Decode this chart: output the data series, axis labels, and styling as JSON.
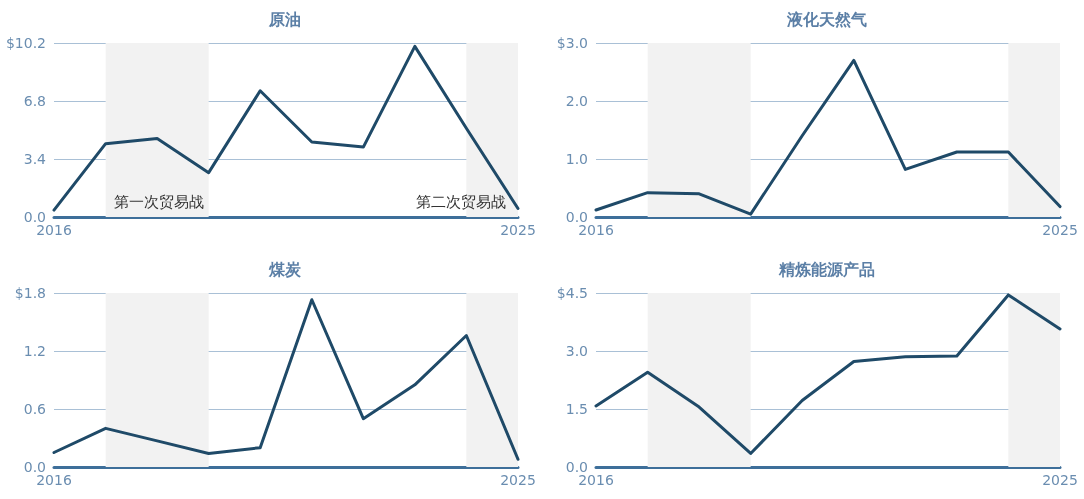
{
  "chart_data": [
    {
      "type": "line",
      "title": "原油",
      "x": [
        "2016",
        "2017",
        "2018",
        "2019",
        "2020",
        "2021",
        "2022",
        "2023",
        "2024",
        "2025"
      ],
      "xlim": [
        "2016",
        "2025"
      ],
      "xticks": [
        "2016",
        "2025"
      ],
      "ylim": [
        0,
        10.2
      ],
      "yticks": [
        {
          "value": 0,
          "label": "0.0"
        },
        3.4,
        6.8,
        {
          "value": 10.2,
          "label": "$10.2"
        }
      ],
      "grid": "y",
      "marker": "none",
      "line_style": "solid",
      "series": [
        {
          "color": "#1f4a68",
          "values": [
            0.4,
            4.3,
            4.6,
            2.6,
            7.4,
            4.4,
            4.1,
            10.0,
            5.2,
            0.5
          ]
        }
      ],
      "bands": [
        {
          "axis": "x",
          "from": "2017",
          "to": "2019",
          "label": "第一次贸易战",
          "color": "#f2f2f2"
        },
        {
          "axis": "x",
          "from": "2024",
          "to": "2025",
          "label": "第二次贸易战",
          "color": "#f2f2f2"
        }
      ]
    },
    {
      "type": "line",
      "title": "液化天然气",
      "x": [
        "2016",
        "2017",
        "2018",
        "2019",
        "2020",
        "2021",
        "2022",
        "2023",
        "2024",
        "2025"
      ],
      "xlim": [
        "2016",
        "2025"
      ],
      "xticks": [
        "2016",
        "2025"
      ],
      "ylim": [
        0,
        3
      ],
      "yticks": [
        {
          "value": 0,
          "label": "0.0"
        },
        {
          "value": 1,
          "label": "1.0"
        },
        {
          "value": 2,
          "label": "2.0"
        },
        {
          "value": 3,
          "label": "$3.0"
        }
      ],
      "grid": "y",
      "marker": "none",
      "line_style": "solid",
      "series": [
        {
          "color": "#1f4a68",
          "values": [
            0.12,
            0.42,
            0.4,
            0.05,
            1.4,
            2.7,
            0.82,
            1.12,
            1.12,
            0.18
          ]
        }
      ],
      "bands": [
        {
          "axis": "x",
          "from": "2017",
          "to": "2019",
          "color": "#f2f2f2"
        },
        {
          "axis": "x",
          "from": "2024",
          "to": "2025",
          "color": "#f2f2f2"
        }
      ]
    },
    {
      "type": "line",
      "title": "煤炭",
      "x": [
        "2016",
        "2017",
        "2018",
        "2019",
        "2020",
        "2021",
        "2022",
        "2023",
        "2024",
        "2025"
      ],
      "xlim": [
        "2016",
        "2025"
      ],
      "xticks": [
        "2016",
        "2025"
      ],
      "ylim": [
        0,
        1.8
      ],
      "yticks": [
        {
          "value": 0,
          "label": "0.0"
        },
        0.6,
        1.2,
        {
          "value": 1.8,
          "label": "$1.8"
        }
      ],
      "grid": "y",
      "marker": "none",
      "line_style": "solid",
      "series": [
        {
          "color": "#1f4a68",
          "values": [
            0.15,
            0.4,
            0.27,
            0.14,
            0.2,
            1.73,
            0.5,
            0.85,
            1.36,
            0.08
          ]
        }
      ],
      "bands": [
        {
          "axis": "x",
          "from": "2017",
          "to": "2019",
          "color": "#f2f2f2"
        },
        {
          "axis": "x",
          "from": "2024",
          "to": "2025",
          "color": "#f2f2f2"
        }
      ]
    },
    {
      "type": "line",
      "title": "精炼能源产品",
      "x": [
        "2016",
        "2017",
        "2018",
        "2019",
        "2020",
        "2021",
        "2022",
        "2023",
        "2024",
        "2025"
      ],
      "xlim": [
        "2016",
        "2025"
      ],
      "xticks": [
        "2016",
        "2025"
      ],
      "ylim": [
        0,
        4.5
      ],
      "yticks": [
        {
          "value": 0,
          "label": "0.0"
        },
        1.5,
        {
          "value": 3,
          "label": "3.0"
        },
        {
          "value": 4.5,
          "label": "$4.5"
        }
      ],
      "grid": "y",
      "marker": "none",
      "line_style": "solid",
      "series": [
        {
          "color": "#1f4a68",
          "values": [
            1.58,
            2.45,
            1.55,
            0.35,
            1.72,
            2.73,
            2.85,
            2.87,
            4.45,
            3.57
          ]
        }
      ],
      "bands": [
        {
          "axis": "x",
          "from": "2017",
          "to": "2019",
          "color": "#f2f2f2"
        },
        {
          "axis": "x",
          "from": "2024",
          "to": "2025",
          "color": "#f2f2f2"
        }
      ]
    }
  ]
}
